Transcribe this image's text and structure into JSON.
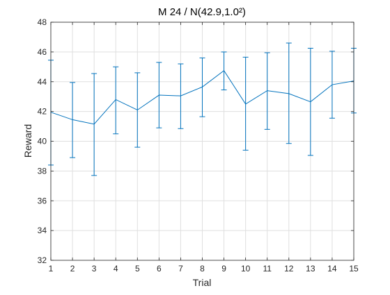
{
  "chart_data": {
    "type": "line",
    "title": "M 24 / N(42.9,1.0²)",
    "xlabel": "Trial",
    "ylabel": "Reward",
    "xlim": [
      1,
      15
    ],
    "ylim": [
      32,
      48
    ],
    "xticks": [
      1,
      2,
      3,
      4,
      5,
      6,
      7,
      8,
      9,
      10,
      11,
      12,
      13,
      14,
      15
    ],
    "yticks": [
      32,
      34,
      36,
      38,
      40,
      42,
      44,
      46,
      48
    ],
    "grid": true,
    "series": [
      {
        "color": "#0072BD",
        "x": [
          1,
          2,
          3,
          4,
          5,
          6,
          7,
          8,
          9,
          10,
          11,
          12,
          13,
          14,
          15
        ],
        "y": [
          41.95,
          41.45,
          41.15,
          42.8,
          42.1,
          43.1,
          43.05,
          43.65,
          44.75,
          42.5,
          43.4,
          43.2,
          42.65,
          43.8,
          44.05
        ],
        "err_low": [
          38.4,
          38.9,
          37.7,
          40.5,
          39.6,
          40.9,
          40.85,
          41.65,
          43.45,
          39.4,
          40.8,
          39.85,
          39.05,
          41.55,
          41.9
        ],
        "err_high": [
          45.45,
          43.95,
          44.55,
          45.0,
          44.6,
          45.3,
          45.2,
          45.6,
          46.0,
          45.65,
          45.95,
          46.6,
          46.25,
          46.05,
          46.25
        ]
      }
    ]
  }
}
